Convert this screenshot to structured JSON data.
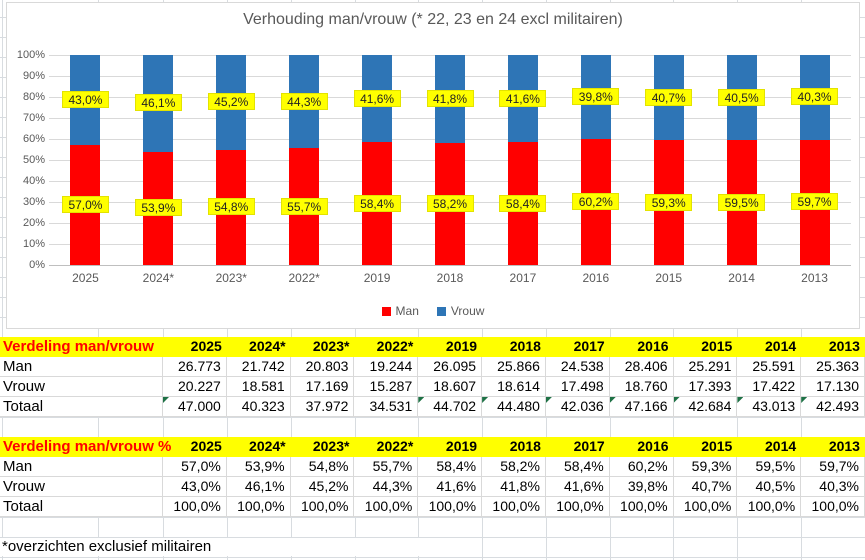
{
  "chart": {
    "title": "Verhouding man/vrouw (* 22, 23 en 24 excl militairen)",
    "y_ticks": [
      "100%",
      "90%",
      "80%",
      "70%",
      "60%",
      "50%",
      "40%",
      "30%",
      "20%",
      "10%",
      "0%"
    ],
    "legend": [
      {
        "label": "Man",
        "color": "#ff0000"
      },
      {
        "label": "Vrouw",
        "color": "#2e75b6"
      }
    ]
  },
  "chart_data": {
    "type": "bar",
    "stacked": true,
    "categories": [
      "2025",
      "2024*",
      "2023*",
      "2022*",
      "2019",
      "2018",
      "2017",
      "2016",
      "2015",
      "2014",
      "2013"
    ],
    "series": [
      {
        "name": "Man",
        "color": "#ff0000",
        "values": [
          57.0,
          53.9,
          54.8,
          55.7,
          58.4,
          58.2,
          58.4,
          60.2,
          59.3,
          59.5,
          59.7
        ],
        "labels": [
          "57,0%",
          "53,9%",
          "54,8%",
          "55,7%",
          "58,4%",
          "58,2%",
          "58,4%",
          "60,2%",
          "59,3%",
          "59,5%",
          "59,7%"
        ]
      },
      {
        "name": "Vrouw",
        "color": "#2e75b6",
        "values": [
          43.0,
          46.1,
          45.2,
          44.3,
          41.6,
          41.8,
          41.6,
          39.8,
          40.7,
          40.5,
          40.3
        ],
        "labels": [
          "43,0%",
          "46,1%",
          "45,2%",
          "44,3%",
          "41,6%",
          "41,8%",
          "41,6%",
          "39,8%",
          "40,7%",
          "40,5%",
          "40,3%"
        ]
      }
    ],
    "ylim": [
      0,
      100
    ],
    "ylabel": "",
    "xlabel": "",
    "grid": true,
    "legend_position": "bottom",
    "data_label_style": {
      "background": "#ffff00",
      "text": "#222222"
    }
  },
  "table1": {
    "title": "Verdeling man/vrouw",
    "years": [
      "2025",
      "2024*",
      "2023*",
      "2022*",
      "2019",
      "2018",
      "2017",
      "2016",
      "2015",
      "2014",
      "2013"
    ],
    "rows": [
      {
        "label": "Man",
        "values": [
          "26.773",
          "21.742",
          "20.803",
          "19.244",
          "26.095",
          "25.866",
          "24.538",
          "28.406",
          "25.291",
          "25.591",
          "25.363"
        ]
      },
      {
        "label": "Vrouw",
        "values": [
          "20.227",
          "18.581",
          "17.169",
          "15.287",
          "18.607",
          "18.614",
          "17.498",
          "18.760",
          "17.393",
          "17.422",
          "17.130"
        ]
      },
      {
        "label": "Totaal",
        "values": [
          "47.000",
          "40.323",
          "37.972",
          "34.531",
          "44.702",
          "44.480",
          "42.036",
          "47.166",
          "42.684",
          "43.013",
          "42.493"
        ],
        "indicators": [
          true,
          false,
          false,
          false,
          true,
          true,
          true,
          true,
          true,
          true,
          true
        ]
      }
    ]
  },
  "table2": {
    "title": "Verdeling man/vrouw %",
    "years": [
      "2025",
      "2024*",
      "2023*",
      "2022*",
      "2019",
      "2018",
      "2017",
      "2016",
      "2015",
      "2014",
      "2013"
    ],
    "rows": [
      {
        "label": "Man",
        "values": [
          "57,0%",
          "53,9%",
          "54,8%",
          "55,7%",
          "58,4%",
          "58,2%",
          "58,4%",
          "60,2%",
          "59,3%",
          "59,5%",
          "59,7%"
        ]
      },
      {
        "label": "Vrouw",
        "values": [
          "43,0%",
          "46,1%",
          "45,2%",
          "44,3%",
          "41,6%",
          "41,8%",
          "41,6%",
          "39,8%",
          "40,7%",
          "40,5%",
          "40,3%"
        ]
      },
      {
        "label": "Totaal",
        "values": [
          "100,0%",
          "100,0%",
          "100,0%",
          "100,0%",
          "100,0%",
          "100,0%",
          "100,0%",
          "100,0%",
          "100,0%",
          "100,0%",
          "100,0%"
        ]
      }
    ]
  },
  "footnote": "*overzichten exclusief militairen",
  "colors": {
    "man": "#ff0000",
    "vrouw": "#2e75b6",
    "header_bg": "#ffff00",
    "header_title_text": "#ff0000",
    "data_label_bg": "#ffff00",
    "axis_text": "#595959",
    "chart_gridline": "#d9d9d9",
    "sheet_gridline": "#d8dce0",
    "indicator_green": "#1e7145"
  }
}
